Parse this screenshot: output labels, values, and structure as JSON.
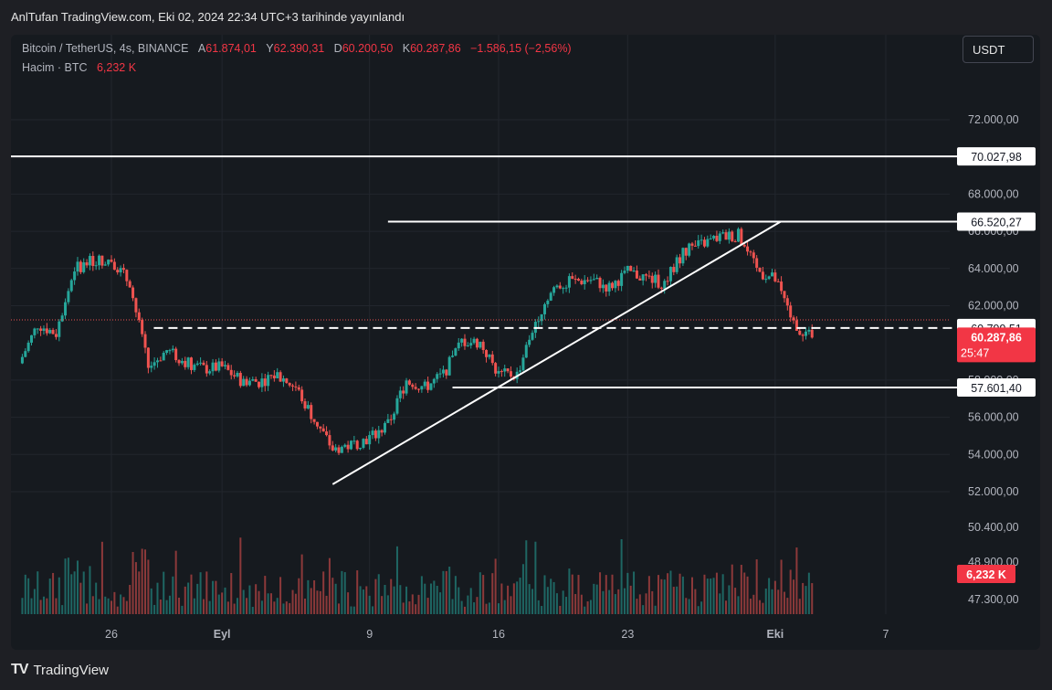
{
  "header": {
    "published": "AnlTufan TradingView.com, Eki 02, 2024 22:34 UTC+3 tarihinde yayınlandı"
  },
  "legend": {
    "symbol": "Bitcoin / TetherUS, 4s, BINANCE",
    "open_label": "A",
    "open": "61.874,01",
    "high_label": "Y",
    "high": "62.390,31",
    "low_label": "D",
    "low": "60.200,50",
    "close_label": "K",
    "close": "60.287,86",
    "change": "−1.586,15 (−2,56%)",
    "volume_label": "Hacim · BTC",
    "volume": "6,232 K"
  },
  "currency_button": "USDT",
  "footer": {
    "brand": "TradingView",
    "logo": "TV"
  },
  "colors": {
    "background": "#161a1f",
    "up": "#26a69a",
    "down": "#ef5350",
    "price_badge": "#f23645",
    "grid": "#22262d",
    "drawing": "#ffffff"
  },
  "chart_data": {
    "type": "candlestick",
    "symbol": "BTCUSDT",
    "timeframe": "4s",
    "ylim": [
      46500,
      73500
    ],
    "y_ticks": [
      "72.000,00",
      "68.000,00",
      "66.000,00",
      "64.000,00",
      "62.000,00",
      "58.000,00",
      "56.000,00",
      "54.000,00",
      "52.000,00",
      "50.400,00",
      "48.900,00",
      "47.300,00"
    ],
    "y_tick_values": [
      72000,
      68000,
      66000,
      64000,
      62000,
      58000,
      56000,
      54000,
      52000,
      50400,
      48900,
      47300
    ],
    "x_ticks": [
      "26",
      "Eyl",
      "9",
      "16",
      "23",
      "Eki",
      "7"
    ],
    "x_tick_days": [
      26,
      32,
      40,
      47,
      54,
      62,
      68
    ],
    "x_range_days": [
      20.5,
      74.5
    ],
    "first_day": 21,
    "last_day": 64,
    "close_anchors": [
      [
        21,
        58900
      ],
      [
        22,
        61000
      ],
      [
        23,
        60500
      ],
      [
        24,
        64000
      ],
      [
        25,
        64400
      ],
      [
        26,
        64500
      ],
      [
        27,
        63200
      ],
      [
        28,
        58700
      ],
      [
        29,
        59600
      ],
      [
        30,
        59000
      ],
      [
        31,
        58600
      ],
      [
        32,
        58700
      ],
      [
        33,
        58000
      ],
      [
        34,
        57900
      ],
      [
        35,
        58300
      ],
      [
        36,
        57600
      ],
      [
        37,
        55900
      ],
      [
        38,
        54300
      ],
      [
        39,
        54500
      ],
      [
        40,
        54900
      ],
      [
        41,
        55600
      ],
      [
        42,
        58000
      ],
      [
        43,
        57600
      ],
      [
        44,
        58300
      ],
      [
        45,
        60100
      ],
      [
        46,
        60000
      ],
      [
        47,
        58300
      ],
      [
        48,
        58300
      ],
      [
        49,
        61200
      ],
      [
        50,
        63000
      ],
      [
        51,
        63300
      ],
      [
        52,
        63400
      ],
      [
        53,
        63000
      ],
      [
        54,
        63800
      ],
      [
        55,
        63500
      ],
      [
        56,
        63200
      ],
      [
        57,
        64900
      ],
      [
        58,
        65300
      ],
      [
        59,
        65700
      ],
      [
        60,
        65800
      ],
      [
        61,
        63900
      ],
      [
        62,
        63400
      ],
      [
        63,
        61000
      ],
      [
        64,
        60288
      ]
    ],
    "last_close": 60287.86,
    "last_close_label": "60.287,86",
    "countdown": "25:47",
    "volume_label": "6,232 K",
    "drawings": [
      {
        "type": "hline",
        "price": 70027.98,
        "label": "70.027,98",
        "from_day": 20.5,
        "style": "solid"
      },
      {
        "type": "hline",
        "price": 66520.27,
        "label": "66.520,27",
        "from_day": 41,
        "style": "solid"
      },
      {
        "type": "hline",
        "price": 60799.51,
        "label": "60.799,51",
        "from_day": 28.3,
        "style": "dashed"
      },
      {
        "type": "hline",
        "price": 57601.4,
        "label": "57.601,40",
        "from_day": 44.5,
        "style": "solid"
      },
      {
        "type": "trendline",
        "from": [
          38.0,
          52400
        ],
        "to": [
          62.3,
          66520
        ]
      }
    ]
  }
}
